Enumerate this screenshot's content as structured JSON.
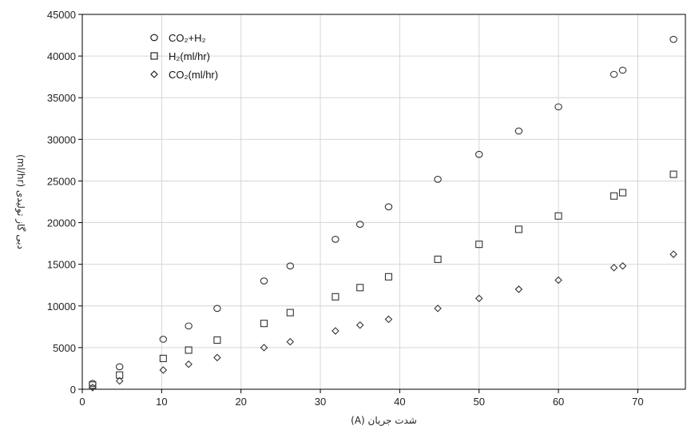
{
  "chart_data": {
    "type": "scatter",
    "title": "",
    "xlabel": "شدت جریان (A)",
    "ylabel": "دبی گاز تولیدی (ml/hr)",
    "xlim": [
      0,
      76
    ],
    "ylim": [
      0,
      45000
    ],
    "x_ticks": [
      0,
      10,
      20,
      30,
      40,
      50,
      60,
      70
    ],
    "y_ticks": [
      0,
      5000,
      10000,
      15000,
      20000,
      25000,
      30000,
      35000,
      40000,
      45000
    ],
    "grid": true,
    "legend_position": "top-left",
    "series": [
      {
        "name": "CO₂+H₂",
        "marker": "circle",
        "color": "#333333",
        "x": [
          1.3,
          4.7,
          10.2,
          13.4,
          17.0,
          22.9,
          26.2,
          31.9,
          35.0,
          38.6,
          44.8,
          50.0,
          55.0,
          60.0,
          67.0,
          68.1,
          74.5
        ],
        "y": [
          700,
          2700,
          6000,
          7600,
          9700,
          13000,
          14800,
          18000,
          19800,
          21900,
          25200,
          28200,
          31000,
          33900,
          37800,
          38300,
          42000
        ]
      },
      {
        "name": "H₂(ml/hr)",
        "marker": "square",
        "color": "#333333",
        "x": [
          1.3,
          4.7,
          10.2,
          13.4,
          17.0,
          22.9,
          26.2,
          31.9,
          35.0,
          38.6,
          44.8,
          50.0,
          55.0,
          60.0,
          67.0,
          68.1,
          74.5
        ],
        "y": [
          500,
          1700,
          3700,
          4700,
          5900,
          7900,
          9200,
          11100,
          12200,
          13500,
          15600,
          17400,
          19200,
          20800,
          23200,
          23600,
          25800
        ]
      },
      {
        "name": "CO₂(ml/hr)",
        "marker": "diamond",
        "color": "#333333",
        "x": [
          1.3,
          4.7,
          10.2,
          13.4,
          17.0,
          22.9,
          26.2,
          31.9,
          35.0,
          38.6,
          44.8,
          50.0,
          55.0,
          60.0,
          67.0,
          68.1,
          74.5
        ],
        "y": [
          200,
          1000,
          2300,
          3000,
          3800,
          5000,
          5700,
          7000,
          7700,
          8400,
          9700,
          10900,
          12000,
          13100,
          14600,
          14800,
          16200
        ]
      }
    ]
  }
}
